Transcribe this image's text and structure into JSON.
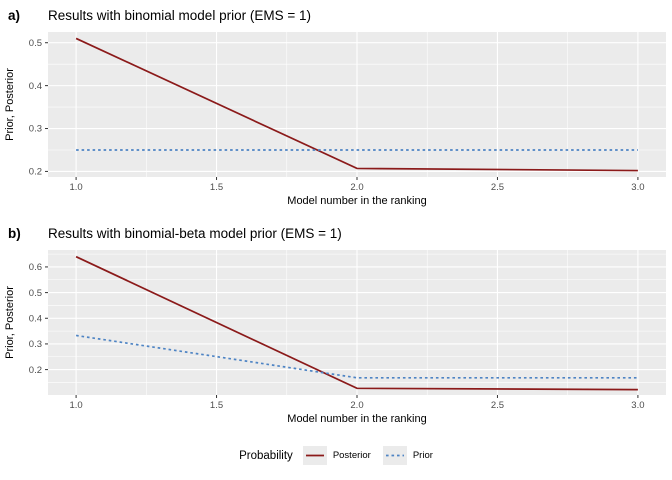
{
  "colors": {
    "posterior": "#8B1A1A",
    "prior": "#4E84C4",
    "panel_background": "#EBEBEB",
    "gridline": "#FFFFFF",
    "tick_label": "#4D4D4D",
    "tick_mark": "#333333",
    "text": "#000000",
    "legend_key_background": "#EBEBEB",
    "page_background": "#FFFFFF"
  },
  "legend": {
    "title": "Probability",
    "items": [
      {
        "label": "Posterior",
        "series": "Posterior",
        "line_style": "solid",
        "color": "#8B1A1A"
      },
      {
        "label": "Prior",
        "series": "Prior",
        "line_style": "dashed",
        "color": "#4E84C4"
      }
    ]
  },
  "chart_data": [
    {
      "type": "line",
      "tag": "a)",
      "title": "Results with binomial model prior (EMS = 1)",
      "xlabel": "Model number in the ranking",
      "ylabel": "Prior, Posterior",
      "x": [
        1,
        2,
        3
      ],
      "series": [
        {
          "name": "Posterior",
          "style": "solid",
          "color": "#8B1A1A",
          "values": [
            0.51,
            0.207,
            0.202
          ]
        },
        {
          "name": "Prior",
          "style": "dashed",
          "color": "#4E84C4",
          "values": [
            0.25,
            0.25,
            0.25
          ]
        }
      ],
      "xticks": [
        1.0,
        1.5,
        2.0,
        2.5,
        3.0
      ],
      "yticks": [
        0.2,
        0.3,
        0.4,
        0.5
      ],
      "xlim": [
        0.9,
        3.1
      ],
      "ylim": [
        0.187,
        0.525
      ],
      "grid": true,
      "legend_position": "bottom-shared"
    },
    {
      "type": "line",
      "tag": "b)",
      "title": "Results with binomial-beta model prior (EMS = 1)",
      "xlabel": "Model number in the ranking",
      "ylabel": "Prior, Posterior",
      "x": [
        1,
        2,
        3
      ],
      "series": [
        {
          "name": "Posterior",
          "style": "solid",
          "color": "#8B1A1A",
          "values": [
            0.64,
            0.127,
            0.122
          ]
        },
        {
          "name": "Prior",
          "style": "dashed",
          "color": "#4E84C4",
          "values": [
            0.333,
            0.168,
            0.168
          ]
        }
      ],
      "xticks": [
        1.0,
        1.5,
        2.0,
        2.5,
        3.0
      ],
      "yticks": [
        0.2,
        0.3,
        0.4,
        0.5,
        0.6
      ],
      "xlim": [
        0.9,
        3.1
      ],
      "ylim": [
        0.101,
        0.666
      ],
      "grid": true,
      "legend_position": "bottom-shared"
    }
  ]
}
